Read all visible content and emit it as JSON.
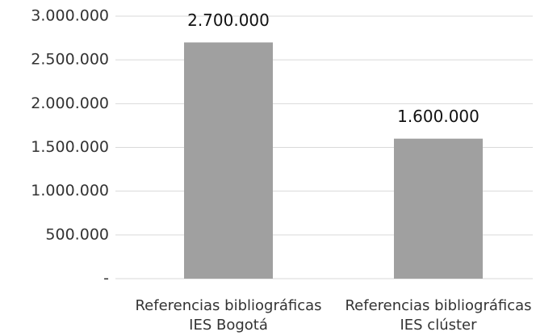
{
  "chart_data": {
    "type": "bar",
    "categories": [
      "Referencias bibliográficas IES Bogotá",
      "Referencias bibliográficas IES clúster"
    ],
    "values": [
      2700000,
      1600000
    ],
    "value_labels": [
      "2.700.000",
      "1.600.000"
    ],
    "color": "#a0a0a0",
    "ylim": [
      0,
      3000000
    ],
    "yticks": [
      {
        "value": 0,
        "label": "-"
      },
      {
        "value": 500000,
        "label": "500.000"
      },
      {
        "value": 1000000,
        "label": "1.000.000"
      },
      {
        "value": 1500000,
        "label": "1.500.000"
      },
      {
        "value": 2000000,
        "label": "2.000.000"
      },
      {
        "value": 2500000,
        "label": "2.500.000"
      },
      {
        "value": 3000000,
        "label": "3.000.000"
      }
    ],
    "grid": true
  }
}
